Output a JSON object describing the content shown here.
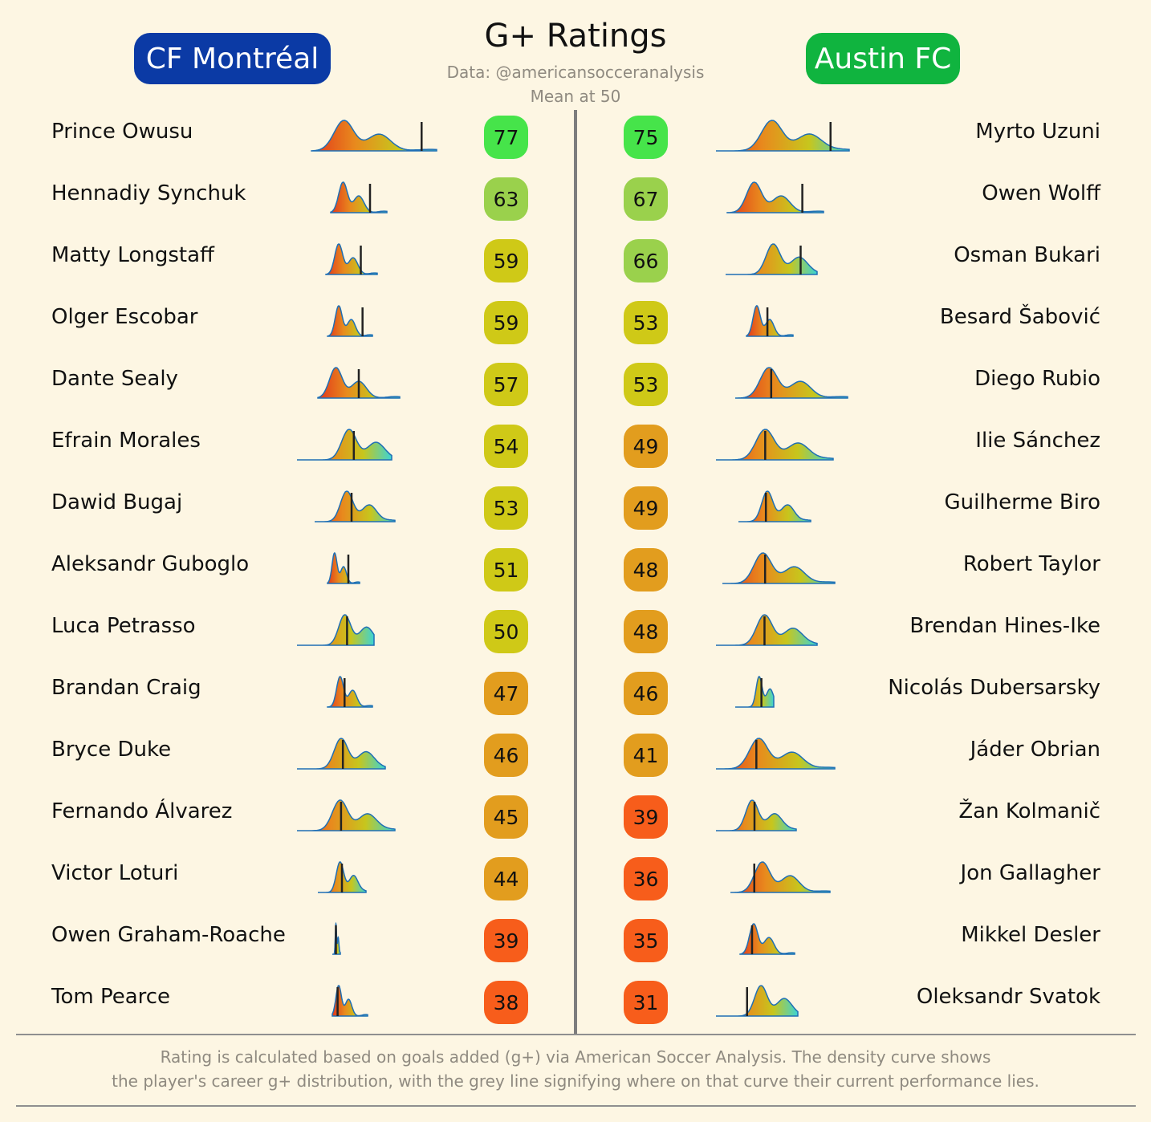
{
  "title": "G+ Ratings",
  "subtitle": "Data: @americansocceranalysis",
  "mean_note": "Mean at 50",
  "teams": {
    "left": {
      "name": "CF Montréal",
      "color": "#0b3aa5"
    },
    "right": {
      "name": "Austin FC",
      "color": "#10b43f"
    }
  },
  "footnote": {
    "line1": "Rating is calculated based on goals added (g+) via American Soccer Analysis. The density curve shows",
    "line2": "the player's career g+ distribution, with the grey line signifying where on that curve their current performance lies."
  },
  "rating_colors": {
    "high": "#46e44a",
    "good": "#9ad14c",
    "mid": "#cfc917",
    "low": "#e29d1e",
    "poor": "#f75d1b"
  },
  "chart_data": {
    "type": "table",
    "title": "G+ Ratings",
    "mean": 50,
    "left_team": "CF Montréal",
    "right_team": "Austin FC",
    "rows": [
      {
        "left_player": "Prince Owusu",
        "left_rating": 77,
        "right_player": "Myrto Uzuni",
        "right_rating": 75
      },
      {
        "left_player": "Hennadiy Synchuk",
        "left_rating": 63,
        "right_player": "Owen Wolff",
        "right_rating": 67
      },
      {
        "left_player": "Matty Longstaff",
        "left_rating": 59,
        "right_player": "Osman Bukari",
        "right_rating": 66
      },
      {
        "left_player": "Olger Escobar",
        "left_rating": 59,
        "right_player": "Besard Šabović",
        "right_rating": 53
      },
      {
        "left_player": "Dante Sealy",
        "left_rating": 57,
        "right_player": "Diego Rubio",
        "right_rating": 53
      },
      {
        "left_player": "Efrain Morales",
        "left_rating": 54,
        "right_player": "Ilie Sánchez",
        "right_rating": 49
      },
      {
        "left_player": "Dawid Bugaj",
        "left_rating": 53,
        "right_player": "Guilherme Biro",
        "right_rating": 49
      },
      {
        "left_player": "Aleksandr Guboglo",
        "left_rating": 51,
        "right_player": "Robert Taylor",
        "right_rating": 48
      },
      {
        "left_player": "Luca Petrasso",
        "left_rating": 50,
        "right_player": "Brendan Hines-Ike",
        "right_rating": 48
      },
      {
        "left_player": "Brandan Craig",
        "left_rating": 47,
        "right_player": "Nicolás Dubersarsky",
        "right_rating": 46
      },
      {
        "left_player": "Bryce Duke",
        "left_rating": 46,
        "right_player": "Jáder Obrian",
        "right_rating": 41
      },
      {
        "left_player": "Fernando Álvarez",
        "left_rating": 45,
        "right_player": "Žan Kolmanič",
        "right_rating": 39
      },
      {
        "left_player": "Victor Loturi",
        "left_rating": 44,
        "right_player": "Jon Gallagher",
        "right_rating": 36
      },
      {
        "left_player": "Owen Graham-Roache",
        "left_rating": 39,
        "right_player": "Mikkel Desler",
        "right_rating": 35
      },
      {
        "left_player": "Tom Pearce",
        "left_rating": 38,
        "right_player": "Oleksandr Svatok",
        "right_rating": 31
      }
    ]
  }
}
